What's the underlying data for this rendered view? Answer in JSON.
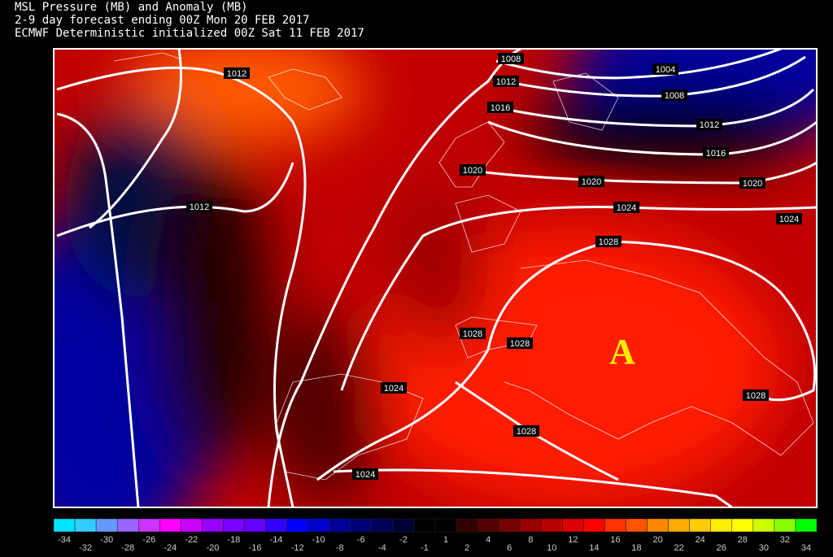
{
  "header": {
    "lines": [
      "MSL Pressure (MB) and Anomaly (MB)",
      "2-9 day forecast ending 00Z Mon 20 FEB 2017",
      "ECMWF Deterministic initialized 00Z Sat 11 FEB 2017"
    ]
  },
  "isobar_labels": [
    1012,
    1012,
    1008,
    1012,
    1016,
    1020,
    1004,
    1008,
    1012,
    1016,
    1020,
    1020,
    1024,
    1024,
    1028,
    1028,
    1028,
    1024,
    1028,
    1028,
    1024
  ],
  "anomaly_marker": "A",
  "colorbar": {
    "labels": [
      -34,
      -32,
      -30,
      -28,
      -26,
      -24,
      -22,
      -20,
      -18,
      -16,
      -14,
      -12,
      -10,
      -8,
      -6,
      -4,
      -2,
      -1,
      1,
      2,
      4,
      6,
      8,
      10,
      12,
      14,
      16,
      18,
      20,
      22,
      24,
      26,
      28,
      30,
      32,
      34
    ]
  }
}
